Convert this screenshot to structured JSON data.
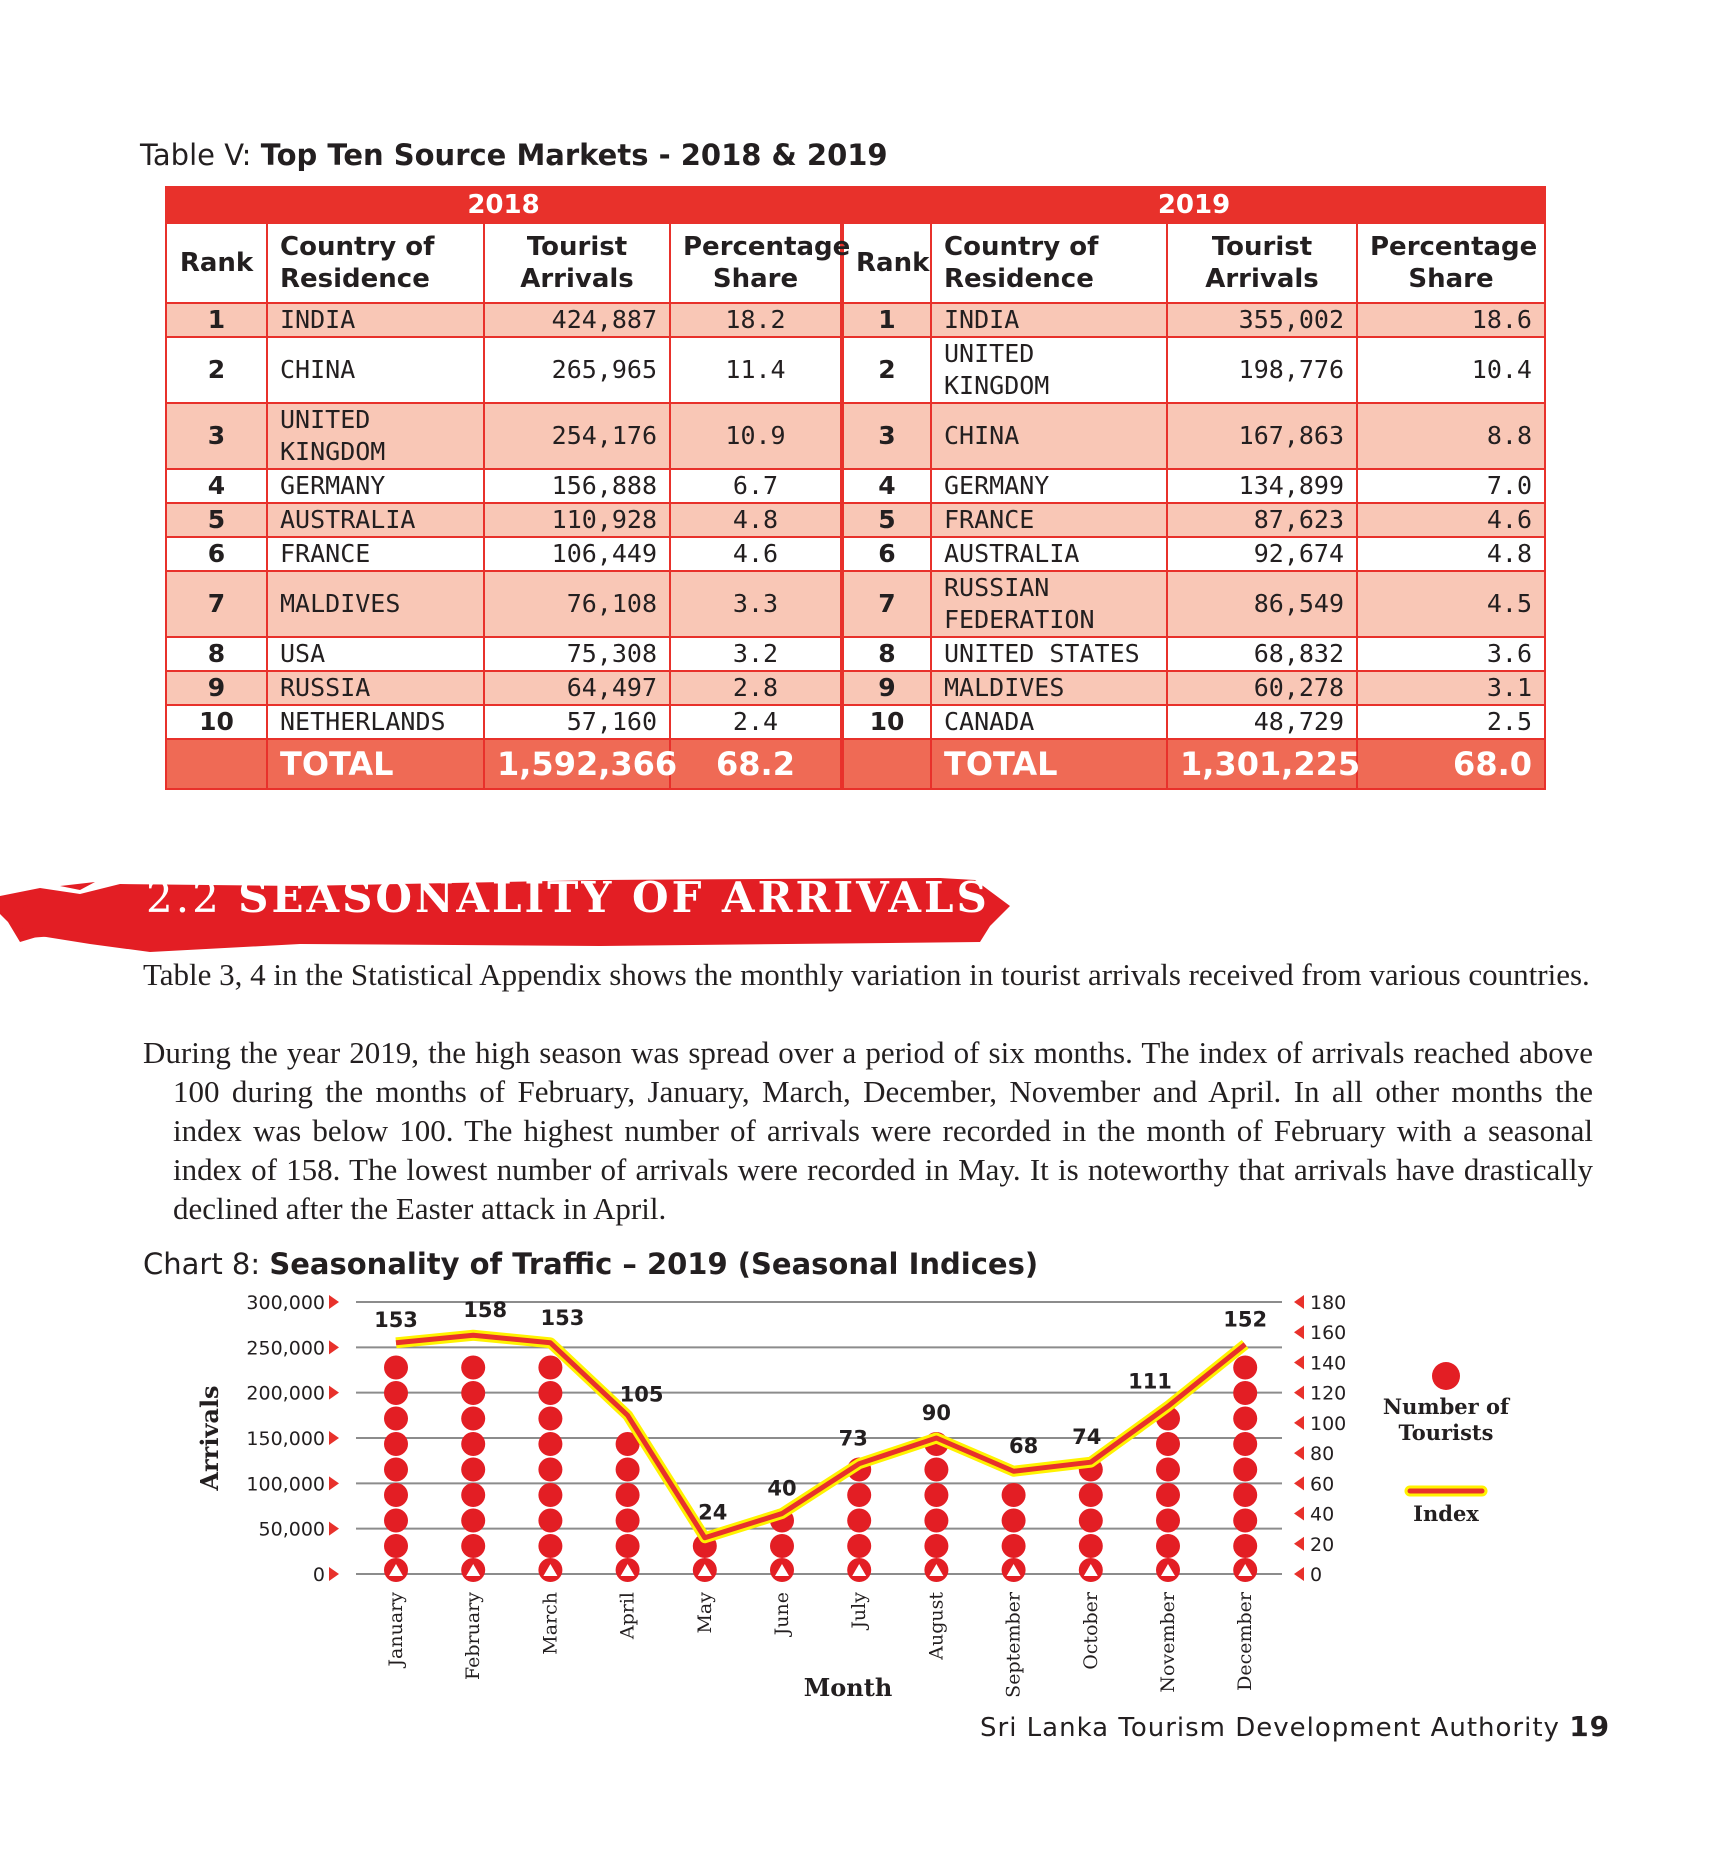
{
  "table": {
    "caption_prefix": "Table V:",
    "caption_title": "Top Ten Source Markets - 2018 & 2019",
    "years": [
      "2018",
      "2019"
    ],
    "headers": {
      "rank": "Rank",
      "country": [
        "Country of",
        "Residence"
      ],
      "arrivals": [
        "Tourist",
        "Arrivals"
      ],
      "share": [
        "Percentage",
        "Share"
      ]
    },
    "rows": [
      {
        "r1": "1",
        "c1": [
          "INDIA"
        ],
        "a1": "424,887",
        "s1": "18.2",
        "r2": "1",
        "c2": [
          "INDIA"
        ],
        "a2": "355,002",
        "s2": "18.6"
      },
      {
        "r1": "2",
        "c1": [
          "CHINA"
        ],
        "a1": "265,965",
        "s1": "11.4",
        "r2": "2",
        "c2": [
          "UNITED",
          "KINGDOM"
        ],
        "a2": "198,776",
        "s2": "10.4"
      },
      {
        "r1": "3",
        "c1": [
          "UNITED",
          "KINGDOM"
        ],
        "a1": "254,176",
        "s1": "10.9",
        "r2": "3",
        "c2": [
          "CHINA"
        ],
        "a2": "167,863",
        "s2": "8.8"
      },
      {
        "r1": "4",
        "c1": [
          "GERMANY"
        ],
        "a1": "156,888",
        "s1": "6.7",
        "r2": "4",
        "c2": [
          "GERMANY"
        ],
        "a2": "134,899",
        "s2": "7.0"
      },
      {
        "r1": "5",
        "c1": [
          "AUSTRALIA"
        ],
        "a1": "110,928",
        "s1": "4.8",
        "r2": "5",
        "c2": [
          "FRANCE"
        ],
        "a2": "87,623",
        "s2": "4.6"
      },
      {
        "r1": "6",
        "c1": [
          "FRANCE"
        ],
        "a1": "106,449",
        "s1": "4.6",
        "r2": "6",
        "c2": [
          "AUSTRALIA"
        ],
        "a2": "92,674",
        "s2": "4.8"
      },
      {
        "r1": "7",
        "c1": [
          "MALDIVES"
        ],
        "a1": "76,108",
        "s1": "3.3",
        "r2": "7",
        "c2": [
          "RUSSIAN",
          "FEDERATION"
        ],
        "a2": "86,549",
        "s2": "4.5"
      },
      {
        "r1": "8",
        "c1": [
          "USA"
        ],
        "a1": "75,308",
        "s1": "3.2",
        "r2": "8",
        "c2": [
          "UNITED STATES"
        ],
        "a2": "68,832",
        "s2": "3.6"
      },
      {
        "r1": "9",
        "c1": [
          "RUSSIA"
        ],
        "a1": "64,497",
        "s1": "2.8",
        "r2": "9",
        "c2": [
          "MALDIVES"
        ],
        "a2": "60,278",
        "s2": "3.1"
      },
      {
        "r1": "10",
        "c1": [
          "NETHERLANDS"
        ],
        "a1": "57,160",
        "s1": "2.4",
        "r2": "10",
        "c2": [
          "CANADA"
        ],
        "a2": "48,729",
        "s2": "2.5"
      }
    ],
    "total": {
      "label": "TOTAL",
      "a1": "1,592,366",
      "s1": "68.2",
      "a2": "1,301,225",
      "s2": "68.0"
    }
  },
  "section": {
    "number": "2.2",
    "title": "SEASONALITY OF ARRIVALS"
  },
  "paragraphs": [
    "Table 3, 4 in the Statistical Appendix shows the monthly variation in tourist arrivals received from various countries.",
    "During the year 2019, the high season was spread over a period of six months. The index of arrivals reached above 100 during the months of February, January, March, December, November and April. In all other months the index was below 100. The highest number of arrivals were recorded in the month of February with a seasonal index of 158. The lowest number of arrivals were recorded in May. It is noteworthy that arrivals have drastically declined after the Easter attack in April."
  ],
  "chart_caption": {
    "prefix": "Chart 8:",
    "title": "Seasonality of Traffic – 2019 (Seasonal Indices)"
  },
  "chart_data": {
    "type": "line",
    "title": "Seasonality of Traffic – 2019 (Seasonal Indices)",
    "xlabel": "Month",
    "ylabel": "Arrivals",
    "categories": [
      "January",
      "February",
      "March",
      "April",
      "May",
      "June",
      "July",
      "August",
      "September",
      "October",
      "November",
      "December"
    ],
    "y_left": {
      "ticks": [
        "0",
        "50,000",
        "100,000",
        "150,000",
        "200,000",
        "250,000",
        "300,000"
      ],
      "range": [
        0,
        300000
      ]
    },
    "y_right": {
      "ticks": [
        "0",
        "20",
        "40",
        "60",
        "80",
        "100",
        "120",
        "140",
        "160",
        "180"
      ],
      "range": [
        0,
        180
      ]
    },
    "series": [
      {
        "name": "Number of Tourists",
        "type": "dots",
        "values": [
          244239,
          252033,
          244328,
          166975,
          37802,
          63072,
          115701,
          143587,
          108575,
          118743,
          176984,
          241663
        ]
      },
      {
        "name": "Index",
        "type": "line",
        "values": [
          153,
          158,
          153,
          105,
          24,
          40,
          73,
          90,
          68,
          74,
          111,
          152
        ]
      }
    ],
    "legend": [
      "Number of Tourists",
      "Index"
    ],
    "legend_position": "right",
    "colors": {
      "dots": "#e31e24",
      "line": "#e8312b",
      "line_glow": "#fff200",
      "grid": "#8c8c8c"
    }
  },
  "footer": {
    "org": "Sri Lanka Tourism Development Authority",
    "page": "19"
  }
}
